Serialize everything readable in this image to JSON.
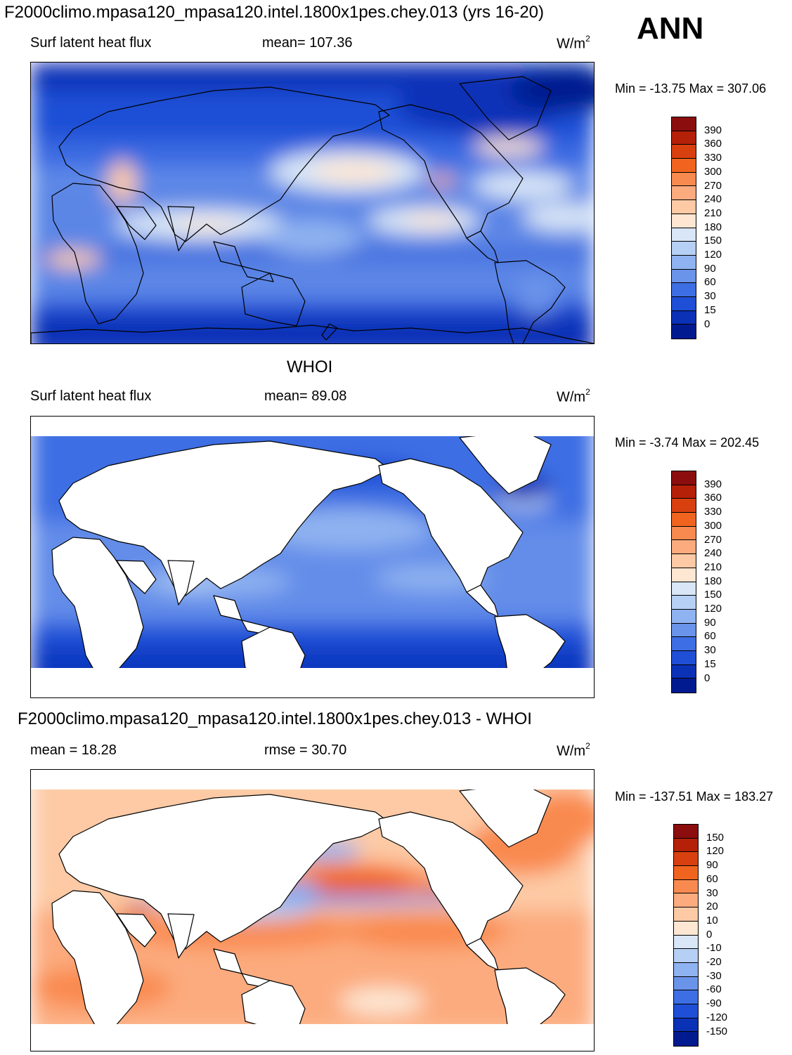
{
  "header": {
    "title": "F2000climo.mpasa120_mpasa120.intel.1800x1pes.chey.013 (yrs 16-20)",
    "season": "ANN"
  },
  "panels": [
    {
      "title": "",
      "left_label": "Surf latent heat flux",
      "center_label": "mean= 107.36",
      "units_base": "W/m",
      "units_exp": "2",
      "min_max": "Min = -13.75 Max = 307.06",
      "style": "model"
    },
    {
      "title": "WHOI",
      "left_label": "Surf latent heat flux",
      "center_label": "mean=  89.08",
      "units_base": "W/m",
      "units_exp": "2",
      "min_max": "Min =  -3.74 Max = 202.45",
      "style": "obs"
    },
    {
      "title": "F2000climo.mpasa120_mpasa120.intel.1800x1pes.chey.013 - WHOI",
      "left_label": "mean =  18.28",
      "center_label": "rmse =  30.70",
      "units_base": "W/m",
      "units_exp": "2",
      "min_max": "Min = -137.51 Max = 183.27",
      "style": "diff"
    }
  ],
  "colorbars": {
    "absolute": {
      "labels": [
        "390",
        "360",
        "330",
        "300",
        "270",
        "240",
        "210",
        "180",
        "150",
        "120",
        "90",
        "60",
        "30",
        "15",
        "0"
      ],
      "colors": [
        "#8b0d0d",
        "#b52008",
        "#d9400f",
        "#f0641f",
        "#f98a4f",
        "#fcab7e",
        "#fdcaa5",
        "#fde6d2",
        "#d8e6f7",
        "#b6cff4",
        "#8fb2f0",
        "#6a93ea",
        "#3e6ee3",
        "#1f4fd6",
        "#0b31b7",
        "#021a8f"
      ]
    },
    "difference": {
      "labels": [
        "150",
        "120",
        "90",
        "60",
        "30",
        "20",
        "10",
        "0",
        "-10",
        "-20",
        "-30",
        "-60",
        "-90",
        "-120",
        "-150"
      ],
      "colors": [
        "#8b0d0d",
        "#b52008",
        "#d9400f",
        "#f0641f",
        "#f98a4f",
        "#fcab7e",
        "#fdcaa5",
        "#fde6d2",
        "#d8e6f7",
        "#b6cff4",
        "#8fb2f0",
        "#6a93ea",
        "#3e6ee3",
        "#1f4fd6",
        "#0b31b7",
        "#021a8f"
      ]
    }
  },
  "chart_data": [
    {
      "type": "heatmap",
      "title": "Surf latent heat flux (model, ANN)",
      "units": "W/m2",
      "mean": 107.36,
      "min": -13.75,
      "max": 307.06,
      "levels": [
        0,
        15,
        30,
        60,
        90,
        120,
        150,
        180,
        210,
        240,
        270,
        300,
        330,
        360,
        390
      ]
    },
    {
      "type": "heatmap",
      "title": "Surf latent heat flux (WHOI)",
      "units": "W/m2",
      "mean": 89.08,
      "min": -3.74,
      "max": 202.45,
      "levels": [
        0,
        15,
        30,
        60,
        90,
        120,
        150,
        180,
        210,
        240,
        270,
        300,
        330,
        360,
        390
      ]
    },
    {
      "type": "heatmap",
      "title": "Model - WHOI difference",
      "units": "W/m2",
      "mean": 18.28,
      "rmse": 30.7,
      "min": -137.51,
      "max": 183.27,
      "levels": [
        -150,
        -120,
        -90,
        -60,
        -30,
        -20,
        -10,
        0,
        10,
        20,
        30,
        60,
        90,
        120,
        150
      ]
    }
  ]
}
